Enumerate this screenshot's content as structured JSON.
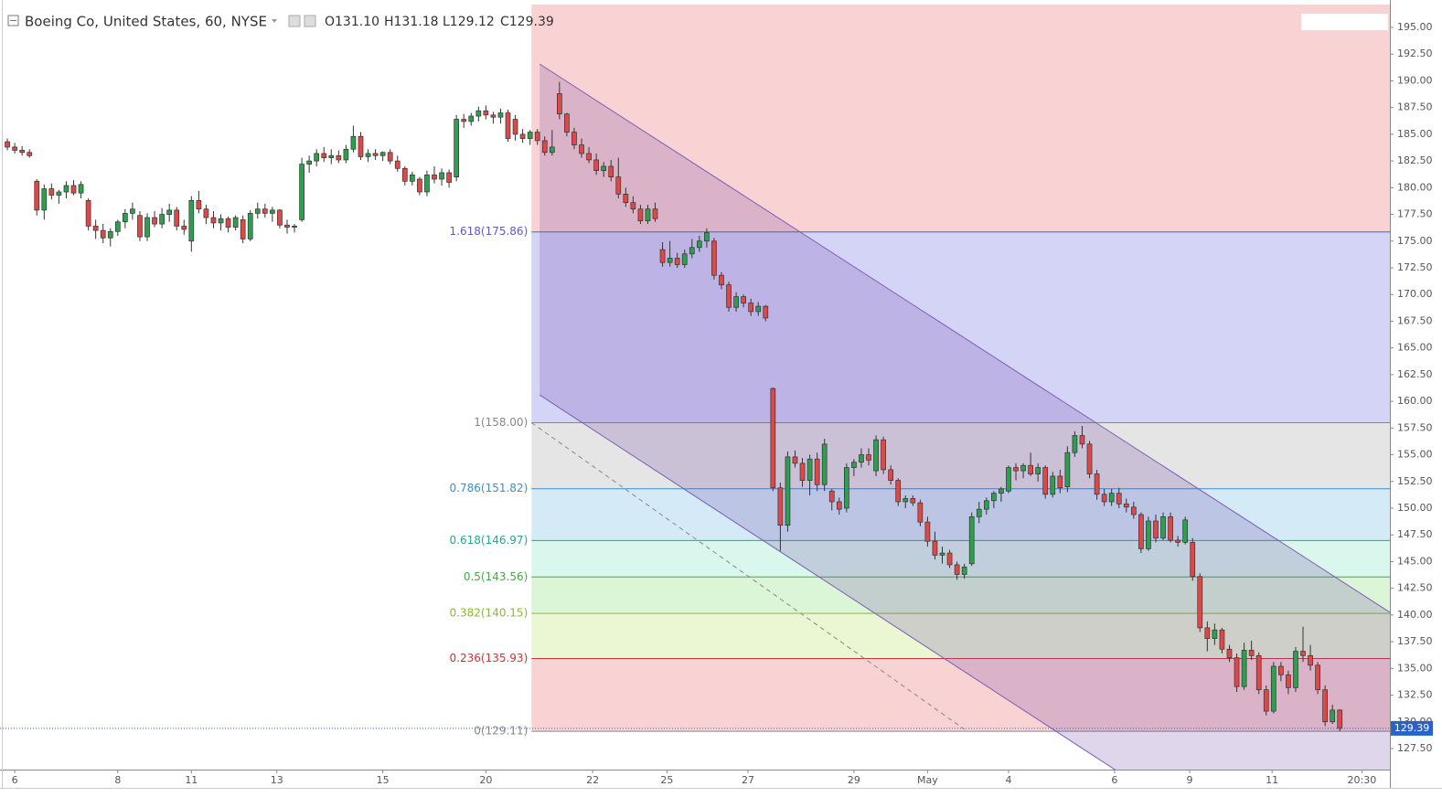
{
  "chart_data": {
    "type": "candlestick",
    "title": "Boeing Co, United States, 60, NYSE",
    "ohlc_header": [
      "O131.10",
      "H131.18",
      "L129.12",
      "C129.39"
    ],
    "up_color": "#2e9e4f",
    "down_color": "#e04848",
    "xlim": [
      -1,
      187.8
    ],
    "ylim": [
      125.53,
      197.14
    ],
    "xticks": [
      {
        "value": 1,
        "label": "6"
      },
      {
        "value": 15,
        "label": "8"
      },
      {
        "value": 25,
        "label": "11"
      },
      {
        "value": 36.6,
        "label": "13"
      },
      {
        "value": 51,
        "label": "15"
      },
      {
        "value": 65,
        "label": "20"
      },
      {
        "value": 79.5,
        "label": "22"
      },
      {
        "value": 89.6,
        "label": "25"
      },
      {
        "value": 100.6,
        "label": "27"
      },
      {
        "value": 115,
        "label": "29"
      },
      {
        "value": 125,
        "label": "May"
      },
      {
        "value": 136,
        "label": "4"
      },
      {
        "value": 150.4,
        "label": "6"
      },
      {
        "value": 160.6,
        "label": "9"
      },
      {
        "value": 171.8,
        "label": "11"
      },
      {
        "value": 184,
        "label": "20:30"
      }
    ],
    "yticks": [
      {
        "value": 127.5,
        "label": "127.50"
      },
      {
        "value": 130,
        "label": "130.00"
      },
      {
        "value": 132.5,
        "label": "132.50"
      },
      {
        "value": 135,
        "label": "135.00"
      },
      {
        "value": 137.5,
        "label": "137.50"
      },
      {
        "value": 140,
        "label": "140.00"
      },
      {
        "value": 142.5,
        "label": "142.50"
      },
      {
        "value": 145,
        "label": "145.00"
      },
      {
        "value": 147.5,
        "label": "147.50"
      },
      {
        "value": 150,
        "label": "150.00"
      },
      {
        "value": 152.5,
        "label": "152.50"
      },
      {
        "value": 155,
        "label": "155.00"
      },
      {
        "value": 157.5,
        "label": "157.50"
      },
      {
        "value": 160,
        "label": "160.00"
      },
      {
        "value": 162.5,
        "label": "162.50"
      },
      {
        "value": 165,
        "label": "165.00"
      },
      {
        "value": 167.5,
        "label": "167.50"
      },
      {
        "value": 170,
        "label": "170.00"
      },
      {
        "value": 172.5,
        "label": "172.50"
      },
      {
        "value": 175,
        "label": "175.00"
      },
      {
        "value": 177.5,
        "label": "177.50"
      },
      {
        "value": 180,
        "label": "180.00"
      },
      {
        "value": 182.5,
        "label": "182.50"
      },
      {
        "value": 185,
        "label": "185.00"
      },
      {
        "value": 187.5,
        "label": "187.50"
      },
      {
        "value": 190,
        "label": "190.00"
      },
      {
        "value": 192.5,
        "label": "192.50"
      },
      {
        "value": 195,
        "label": "195.00"
      }
    ],
    "fib": {
      "x_start": 71.2,
      "top_color": "rgba(230,80,80,0.25)",
      "levels": [
        {
          "label": "1.618(175.86)",
          "price": 175.86,
          "color": "#5a5ac8",
          "fill": "rgba(120,120,230,0.32)"
        },
        {
          "label": "1(158.00)",
          "price": 158.0,
          "color": "#888888",
          "fill": "rgba(150,150,150,0.25)"
        },
        {
          "label": "0.786(151.82)",
          "price": 151.82,
          "color": "#3d8ec9",
          "fill": "rgba(100,180,225,0.28)"
        },
        {
          "label": "0.618(146.97)",
          "price": 146.97,
          "color": "#22aa88",
          "fill": "rgba(80,220,170,0.22)"
        },
        {
          "label": "0.5(143.56)",
          "price": 143.56,
          "color": "#44aa44",
          "fill": "rgba(110,220,90,0.25)"
        },
        {
          "label": "0.382(140.15)",
          "price": 140.15,
          "color": "#88bb33",
          "fill": "rgba(190,230,110,0.3)"
        },
        {
          "label": "0.236(135.93)",
          "price": 135.93,
          "color": "#cc3333",
          "fill": "rgba(230,80,80,0.25)"
        },
        {
          "label": "0(129.11)",
          "price": 129.11,
          "color": "#888888"
        }
      ]
    },
    "channel": {
      "color": "#7b5fb5",
      "fill": "rgba(110,70,170,0.22)",
      "upper": [
        [
          72.3,
          191.58
        ],
        [
          187.8,
          140.25
        ]
      ],
      "lower": [
        [
          72.3,
          160.6
        ],
        [
          150.5,
          125.5
        ]
      ]
    },
    "trend_line": [
      [
        71.2,
        158.0
      ],
      [
        130.0,
        129.3
      ]
    ],
    "candles": [
      [
        184.3,
        184.6,
        183.5,
        183.8
      ],
      [
        183.8,
        184.2,
        183.2,
        183.5
      ],
      [
        183.5,
        183.9,
        183.0,
        183.3
      ],
      [
        183.3,
        183.6,
        182.8,
        183.0
      ],
      [
        180.6,
        180.8,
        177.4,
        177.9
      ],
      [
        177.9,
        180.3,
        177.0,
        179.9
      ],
      [
        179.9,
        180.4,
        178.9,
        179.3
      ],
      [
        179.3,
        179.8,
        178.5,
        179.6
      ],
      [
        179.6,
        180.6,
        179.0,
        180.2
      ],
      [
        180.2,
        180.7,
        179.3,
        179.5
      ],
      [
        179.5,
        180.6,
        179.0,
        180.3
      ],
      [
        178.8,
        179.0,
        176.0,
        176.4
      ],
      [
        176.4,
        177.0,
        175.2,
        176.0
      ],
      [
        176.0,
        176.6,
        174.8,
        175.3
      ],
      [
        175.3,
        176.2,
        174.5,
        175.9
      ],
      [
        175.9,
        177.0,
        175.5,
        176.8
      ],
      [
        176.8,
        178.0,
        176.2,
        177.6
      ],
      [
        177.6,
        178.6,
        177.0,
        178.0
      ],
      [
        177.4,
        177.8,
        175.0,
        175.4
      ],
      [
        175.4,
        177.6,
        175.0,
        177.2
      ],
      [
        177.2,
        177.8,
        176.3,
        176.6
      ],
      [
        176.6,
        178.1,
        176.2,
        177.5
      ],
      [
        177.5,
        178.5,
        176.8,
        177.9
      ],
      [
        177.9,
        178.2,
        176.0,
        176.4
      ],
      [
        176.4,
        177.0,
        175.6,
        176.1
      ],
      [
        175.0,
        179.2,
        174.0,
        178.8
      ],
      [
        178.8,
        179.7,
        177.6,
        178.0
      ],
      [
        178.0,
        178.4,
        176.6,
        177.2
      ],
      [
        177.2,
        177.8,
        176.2,
        176.7
      ],
      [
        176.7,
        177.5,
        176.0,
        177.1
      ],
      [
        177.1,
        177.3,
        175.8,
        176.3
      ],
      [
        176.3,
        177.4,
        176.0,
        177.2
      ],
      [
        177.0,
        177.4,
        174.8,
        175.2
      ],
      [
        175.2,
        177.9,
        175.0,
        177.6
      ],
      [
        177.6,
        178.6,
        177.1,
        178.0
      ],
      [
        178.0,
        178.5,
        177.2,
        177.6
      ],
      [
        177.6,
        178.2,
        176.8,
        177.9
      ],
      [
        177.9,
        178.0,
        176.2,
        176.5
      ],
      [
        176.5,
        177.0,
        175.7,
        176.3
      ],
      [
        176.3,
        176.6,
        175.8,
        176.4
      ],
      [
        177.0,
        182.8,
        176.8,
        182.2
      ],
      [
        182.2,
        183.0,
        181.4,
        182.5
      ],
      [
        182.5,
        183.6,
        182.0,
        183.2
      ],
      [
        183.2,
        183.8,
        182.4,
        182.8
      ],
      [
        182.8,
        183.6,
        182.2,
        183.0
      ],
      [
        183.0,
        183.5,
        182.3,
        182.6
      ],
      [
        182.6,
        184.0,
        182.3,
        183.6
      ],
      [
        183.6,
        185.8,
        183.3,
        184.8
      ],
      [
        184.8,
        185.2,
        182.6,
        182.9
      ],
      [
        182.9,
        183.6,
        182.4,
        183.2
      ],
      [
        183.2,
        183.6,
        182.6,
        183.0
      ],
      [
        183.0,
        183.4,
        182.5,
        183.3
      ],
      [
        183.3,
        183.6,
        182.2,
        182.5
      ],
      [
        182.5,
        183.0,
        181.5,
        181.8
      ],
      [
        181.8,
        182.0,
        180.2,
        180.6
      ],
      [
        180.6,
        181.5,
        180.2,
        181.2
      ],
      [
        180.8,
        181.0,
        179.3,
        179.6
      ],
      [
        179.6,
        181.6,
        179.2,
        181.2
      ],
      [
        181.2,
        182.0,
        180.4,
        180.8
      ],
      [
        180.8,
        181.8,
        180.2,
        181.4
      ],
      [
        181.4,
        181.7,
        180.0,
        180.5
      ],
      [
        181.0,
        186.8,
        180.6,
        186.4
      ],
      [
        186.4,
        186.9,
        185.6,
        186.2
      ],
      [
        186.2,
        187.0,
        185.8,
        186.7
      ],
      [
        186.7,
        187.6,
        186.2,
        187.2
      ],
      [
        187.2,
        187.7,
        186.4,
        186.8
      ],
      [
        186.8,
        187.1,
        186.0,
        186.6
      ],
      [
        186.6,
        187.4,
        186.0,
        187.0
      ],
      [
        187.0,
        187.3,
        184.3,
        184.6
      ],
      [
        186.4,
        186.8,
        184.4,
        185.0
      ],
      [
        185.0,
        185.5,
        184.2,
        184.6
      ],
      [
        184.6,
        185.4,
        184.0,
        185.2
      ],
      [
        185.2,
        185.5,
        184.0,
        184.4
      ],
      [
        184.4,
        184.8,
        183.0,
        183.3
      ],
      [
        183.3,
        185.4,
        183.0,
        183.8
      ],
      [
        188.8,
        189.9,
        186.4,
        186.9
      ],
      [
        186.9,
        187.0,
        184.8,
        185.2
      ],
      [
        185.2,
        185.6,
        183.6,
        184.0
      ],
      [
        184.0,
        184.6,
        182.8,
        183.2
      ],
      [
        183.2,
        183.8,
        182.3,
        182.6
      ],
      [
        182.6,
        183.2,
        181.2,
        181.6
      ],
      [
        181.6,
        182.4,
        181.0,
        182.0
      ],
      [
        182.0,
        182.6,
        180.6,
        181.0
      ],
      [
        181.0,
        182.8,
        179.0,
        179.4
      ],
      [
        179.4,
        180.0,
        178.2,
        178.6
      ],
      [
        178.6,
        179.2,
        177.6,
        178.0
      ],
      [
        178.0,
        178.4,
        176.6,
        176.9
      ],
      [
        176.9,
        178.4,
        176.6,
        178.0
      ],
      [
        178.0,
        178.6,
        176.8,
        177.1
      ],
      [
        174.2,
        174.9,
        172.6,
        173.0
      ],
      [
        173.0,
        175.0,
        172.6,
        173.4
      ],
      [
        173.4,
        173.9,
        172.5,
        172.8
      ],
      [
        172.8,
        174.2,
        172.5,
        173.8
      ],
      [
        173.8,
        175.2,
        173.4,
        174.4
      ],
      [
        174.4,
        175.5,
        174.0,
        175.0
      ],
      [
        175.0,
        176.2,
        174.4,
        175.8
      ],
      [
        175.0,
        175.3,
        171.4,
        171.8
      ],
      [
        171.8,
        172.1,
        170.5,
        170.9
      ],
      [
        170.9,
        171.2,
        168.4,
        168.8
      ],
      [
        168.8,
        170.2,
        168.4,
        169.8
      ],
      [
        169.8,
        170.0,
        168.8,
        169.2
      ],
      [
        169.2,
        169.6,
        168.0,
        168.4
      ],
      [
        168.4,
        169.3,
        168.0,
        168.9
      ],
      [
        168.9,
        169.0,
        167.5,
        167.8
      ],
      [
        161.2,
        161.3,
        151.6,
        151.9
      ],
      [
        151.9,
        152.4,
        146.0,
        148.4
      ],
      [
        148.4,
        155.3,
        147.8,
        154.8
      ],
      [
        154.8,
        155.4,
        153.8,
        154.2
      ],
      [
        154.2,
        154.7,
        152.0,
        152.6
      ],
      [
        152.6,
        155.0,
        151.2,
        154.6
      ],
      [
        154.6,
        155.2,
        151.6,
        152.2
      ],
      [
        152.2,
        156.5,
        151.6,
        156.0
      ],
      [
        151.6,
        151.8,
        149.8,
        150.6
      ],
      [
        150.6,
        151.0,
        149.4,
        149.9
      ],
      [
        150.0,
        154.2,
        149.6,
        153.8
      ],
      [
        153.8,
        154.6,
        153.0,
        154.3
      ],
      [
        154.3,
        155.6,
        153.8,
        155.0
      ],
      [
        155.0,
        155.6,
        154.0,
        154.5
      ],
      [
        153.5,
        156.8,
        153.0,
        156.4
      ],
      [
        156.4,
        156.7,
        153.2,
        153.6
      ],
      [
        153.6,
        154.0,
        152.2,
        152.6
      ],
      [
        152.6,
        152.8,
        150.2,
        150.6
      ],
      [
        150.6,
        151.2,
        150.0,
        150.9
      ],
      [
        150.9,
        151.2,
        150.2,
        150.5
      ],
      [
        150.5,
        150.8,
        148.3,
        148.7
      ],
      [
        148.7,
        149.2,
        146.4,
        146.9
      ],
      [
        146.9,
        147.8,
        145.2,
        145.6
      ],
      [
        145.6,
        146.4,
        144.8,
        145.8
      ],
      [
        145.8,
        146.1,
        144.4,
        144.7
      ],
      [
        144.7,
        145.0,
        143.3,
        143.8
      ],
      [
        143.8,
        144.8,
        143.4,
        144.5
      ],
      [
        144.8,
        149.6,
        144.6,
        149.2
      ],
      [
        149.2,
        150.6,
        148.6,
        149.9
      ],
      [
        149.9,
        151.0,
        149.4,
        150.7
      ],
      [
        150.7,
        151.6,
        150.0,
        151.4
      ],
      [
        151.4,
        152.0,
        150.6,
        151.8
      ],
      [
        151.6,
        154.0,
        151.4,
        153.8
      ],
      [
        153.8,
        154.2,
        152.6,
        153.5
      ],
      [
        153.5,
        154.2,
        152.8,
        154.0
      ],
      [
        154.0,
        155.2,
        153.0,
        153.2
      ],
      [
        153.2,
        154.2,
        152.5,
        153.8
      ],
      [
        153.8,
        154.0,
        150.9,
        151.3
      ],
      [
        151.3,
        153.4,
        151.0,
        153.0
      ],
      [
        153.0,
        153.6,
        151.4,
        151.9
      ],
      [
        152.0,
        155.8,
        151.5,
        155.2
      ],
      [
        155.2,
        157.2,
        154.8,
        156.8
      ],
      [
        156.8,
        157.7,
        155.6,
        156.0
      ],
      [
        156.0,
        156.3,
        152.8,
        153.2
      ],
      [
        153.2,
        153.6,
        150.8,
        151.3
      ],
      [
        151.3,
        151.8,
        150.2,
        150.6
      ],
      [
        150.6,
        151.8,
        150.2,
        151.4
      ],
      [
        151.4,
        151.9,
        150.0,
        150.4
      ],
      [
        150.4,
        150.9,
        149.6,
        150.1
      ],
      [
        150.1,
        150.6,
        149.0,
        149.4
      ],
      [
        149.4,
        149.6,
        145.8,
        146.2
      ],
      [
        146.2,
        149.2,
        146.0,
        148.8
      ],
      [
        148.8,
        149.4,
        146.8,
        147.2
      ],
      [
        147.2,
        149.6,
        147.0,
        149.2
      ],
      [
        149.2,
        149.6,
        146.8,
        147.0
      ],
      [
        147.0,
        147.4,
        146.4,
        146.8
      ],
      [
        146.8,
        149.2,
        146.6,
        148.9
      ],
      [
        146.8,
        147.2,
        143.2,
        143.6
      ],
      [
        143.6,
        143.9,
        138.4,
        138.8
      ],
      [
        138.8,
        139.4,
        136.6,
        137.8
      ],
      [
        137.8,
        139.2,
        137.2,
        138.6
      ],
      [
        138.6,
        138.8,
        136.4,
        136.8
      ],
      [
        136.8,
        137.2,
        135.6,
        136.0
      ],
      [
        136.0,
        136.4,
        132.8,
        133.3
      ],
      [
        133.3,
        137.4,
        133.0,
        136.7
      ],
      [
        136.7,
        137.6,
        135.8,
        136.2
      ],
      [
        136.2,
        136.5,
        132.6,
        133.0
      ],
      [
        133.0,
        133.4,
        130.6,
        131.0
      ],
      [
        131.0,
        135.6,
        130.8,
        135.2
      ],
      [
        135.2,
        135.6,
        133.8,
        134.4
      ],
      [
        134.4,
        134.8,
        132.6,
        133.2
      ],
      [
        133.2,
        137.0,
        132.8,
        136.6
      ],
      [
        136.6,
        138.9,
        135.6,
        136.2
      ],
      [
        136.2,
        137.2,
        134.8,
        135.3
      ],
      [
        135.3,
        135.6,
        132.6,
        133.0
      ],
      [
        133.0,
        133.4,
        129.6,
        130.0
      ],
      [
        130.0,
        131.6,
        129.8,
        131.1
      ],
      [
        131.1,
        131.18,
        129.12,
        129.39
      ]
    ],
    "last_price_color": "#2962c9"
  }
}
